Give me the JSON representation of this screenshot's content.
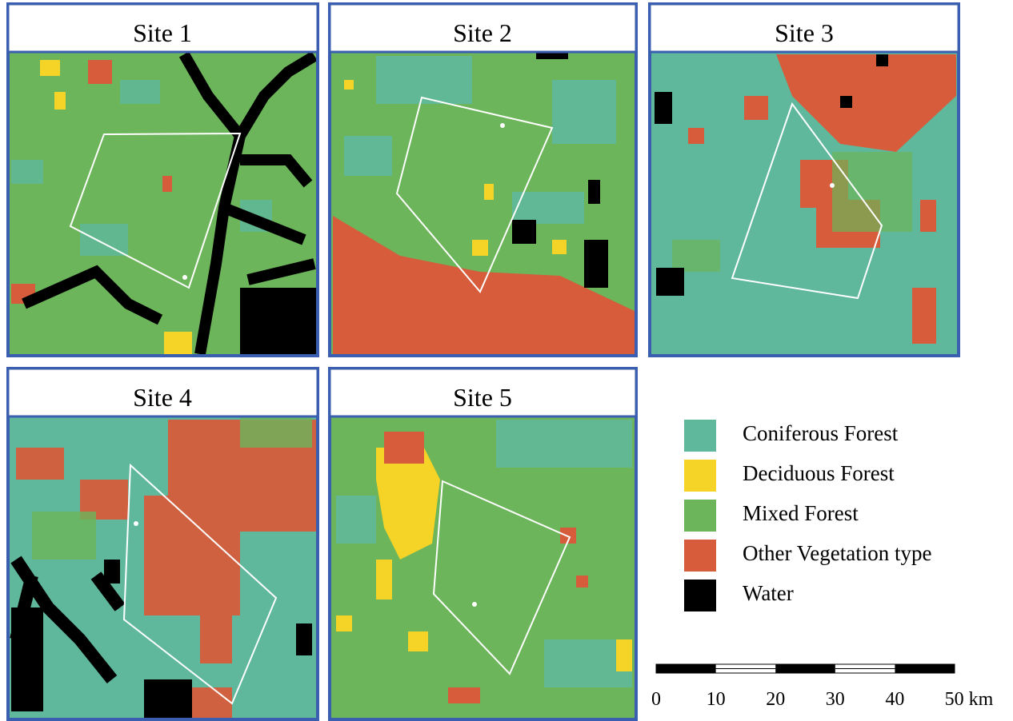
{
  "panels": [
    {
      "title": "Site 1"
    },
    {
      "title": "Site 2"
    },
    {
      "title": "Site 3"
    },
    {
      "title": "Site 4"
    },
    {
      "title": "Site 5"
    }
  ],
  "legend": [
    {
      "label": "Coniferous Forest",
      "color": "#5fb89c"
    },
    {
      "label": "Deciduous Forest",
      "color": "#f5d327"
    },
    {
      "label": "Mixed Forest",
      "color": "#6cb55a"
    },
    {
      "label": "Other Vegetation type",
      "color": "#d65c3b"
    },
    {
      "label": "Water",
      "color": "#000000"
    }
  ],
  "scale_bar": {
    "labels": [
      "0",
      "10",
      "20",
      "30",
      "40",
      "50 km"
    ]
  }
}
